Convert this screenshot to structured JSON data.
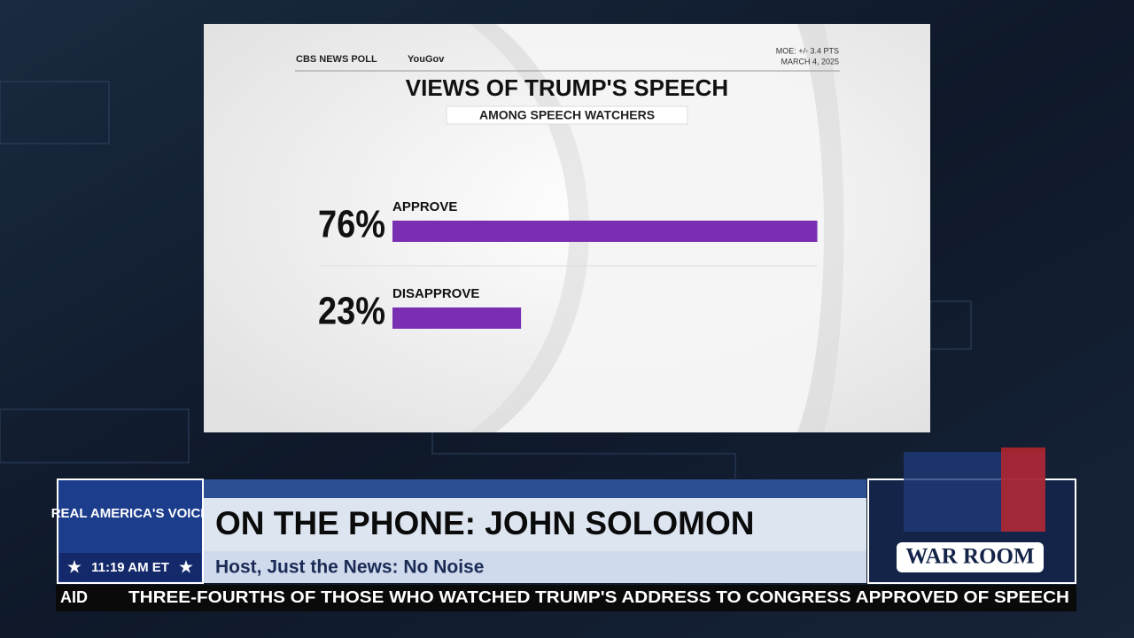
{
  "chart_data": {
    "type": "bar",
    "orientation": "horizontal",
    "title": "VIEWS OF TRUMP'S SPEECH",
    "subtitle": "AMONG SPEECH WATCHERS",
    "source": "CBS NEWS POLL",
    "partner": "YouGov",
    "note": "MOE: +/- 3.4 PTS",
    "date": "MARCH 4, 2025",
    "categories": [
      "APPROVE",
      "DISAPPROVE"
    ],
    "values": [
      76,
      23
    ],
    "value_labels": [
      "76%",
      "23%"
    ],
    "color": "#7a2fb2"
  },
  "broadcast": {
    "network_logo": "REAL AMERICA'S VOICE",
    "time": "11:19 AM ET",
    "headline": "ON THE PHONE: JOHN SOLOMON",
    "subheadline": "Host, Just the News: No Noise",
    "show_logo": "WAR ROOM",
    "ticker": [
      "AID",
      "THREE-FOURTHS OF THOSE WHO WATCHED TRUMP'S ADDRESS TO CONGRESS APPROVED OF SPEECH"
    ]
  }
}
